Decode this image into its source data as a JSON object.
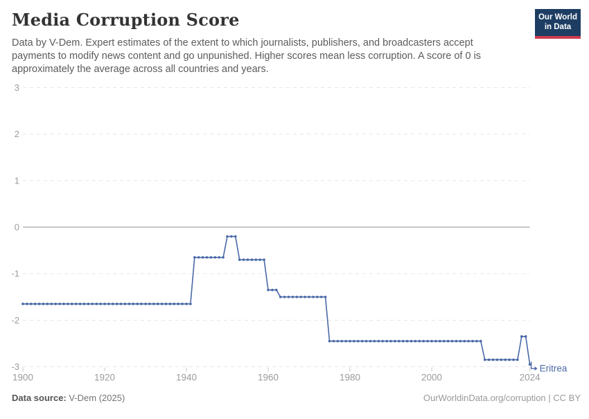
{
  "header": {
    "title": "Media Corruption Score",
    "subtitle": "Data by V-Dem. Expert estimates of the extent to which journalists, publishers, and broadcasters accept payments to modify news content and go unpunished. Higher scores mean less corruption. A score of 0 is approximately the average across all countries and years.",
    "logo": {
      "line1": "Our World",
      "line2": "in Data"
    }
  },
  "footer": {
    "source_label": "Data source:",
    "source_value": " V-Dem (2025)",
    "credit": "OurWorldinData.org/corruption | CC BY"
  },
  "colors": {
    "line": "#4a69a8",
    "entity_label": "#4a69a8",
    "grid_dashed": "#e5e5e5",
    "zero_line": "#8f8f8f",
    "axis_label": "#9b9b9b",
    "tick_mark": "#c8c8c8",
    "logo_bg": "#1d3d63",
    "logo_bar": "#cf3c4e"
  },
  "chart_data": {
    "type": "line",
    "title": "Media Corruption Score",
    "xlabel": "",
    "ylabel": "",
    "xlim": [
      1900,
      2024
    ],
    "ylim": [
      -3,
      3
    ],
    "x_ticks": [
      1900,
      1920,
      1940,
      1960,
      1980,
      2000,
      2024
    ],
    "y_ticks": [
      3,
      2,
      1,
      0,
      -1,
      -2,
      -3
    ],
    "grid": "horizontal dashed gridlines, solid line at 0",
    "legend_position": "label at end of line",
    "series": [
      {
        "name": "Eritrea",
        "color": "#4a69a8",
        "marker": "circle",
        "segments": [
          {
            "from": 1900,
            "to": 1941,
            "value": -1.65
          },
          {
            "from": 1942,
            "to": 1949,
            "value": -0.65
          },
          {
            "from": 1950,
            "to": 1952,
            "value": -0.2
          },
          {
            "from": 1953,
            "to": 1959,
            "value": -0.7
          },
          {
            "from": 1960,
            "to": 1962,
            "value": -1.35
          },
          {
            "from": 1963,
            "to": 1974,
            "value": -1.5
          },
          {
            "from": 1975,
            "to": 2012,
            "value": -2.45
          },
          {
            "from": 2013,
            "to": 2021,
            "value": -2.85
          },
          {
            "from": 2022,
            "to": 2023,
            "value": -2.35
          },
          {
            "from": 2024,
            "to": 2024,
            "value": -2.95
          }
        ]
      }
    ]
  }
}
